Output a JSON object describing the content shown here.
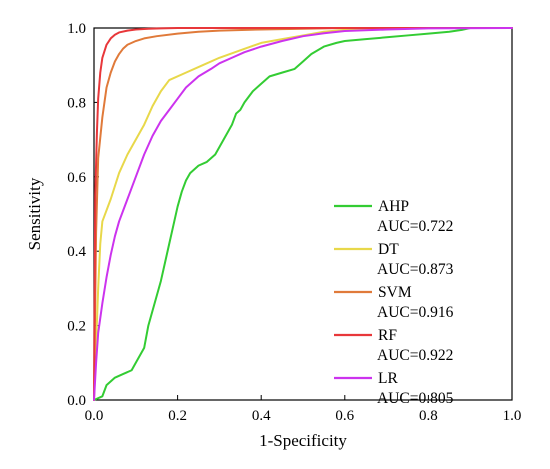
{
  "chart_data": {
    "type": "line",
    "xlabel": "1-Specificity",
    "ylabel": "Sensitivity",
    "xlim": [
      0,
      1
    ],
    "ylim": [
      0,
      1
    ],
    "xticks": [
      0.0,
      0.2,
      0.4,
      0.6,
      0.8,
      1.0
    ],
    "yticks": [
      0.0,
      0.2,
      0.4,
      0.6,
      0.8,
      1.0
    ],
    "xtick_labels": [
      "0.0",
      "0.2",
      "0.4",
      "0.6",
      "0.8",
      "1.0"
    ],
    "ytick_labels": [
      "0.0",
      "0.2",
      "0.4",
      "0.6",
      "0.8",
      "1.0"
    ],
    "grid": false,
    "legend_position": "bottom-right",
    "series": [
      {
        "name": "AHP",
        "auc_label": "AUC=0.722",
        "color": "#33cc33",
        "x": [
          0.0,
          0.02,
          0.03,
          0.05,
          0.07,
          0.09,
          0.1,
          0.12,
          0.13,
          0.14,
          0.15,
          0.16,
          0.17,
          0.18,
          0.19,
          0.2,
          0.21,
          0.22,
          0.23,
          0.24,
          0.25,
          0.27,
          0.29,
          0.31,
          0.33,
          0.34,
          0.35,
          0.36,
          0.38,
          0.4,
          0.42,
          0.45,
          0.48,
          0.5,
          0.52,
          0.55,
          0.58,
          0.6,
          0.65,
          0.7,
          0.75,
          0.8,
          0.85,
          0.88,
          0.9,
          0.95,
          1.0
        ],
        "y": [
          0.0,
          0.01,
          0.04,
          0.06,
          0.07,
          0.08,
          0.1,
          0.14,
          0.2,
          0.24,
          0.28,
          0.32,
          0.37,
          0.42,
          0.47,
          0.52,
          0.56,
          0.59,
          0.61,
          0.62,
          0.63,
          0.64,
          0.66,
          0.7,
          0.74,
          0.77,
          0.78,
          0.8,
          0.83,
          0.85,
          0.87,
          0.88,
          0.89,
          0.91,
          0.93,
          0.95,
          0.96,
          0.965,
          0.97,
          0.975,
          0.98,
          0.985,
          0.99,
          0.995,
          1.0,
          1.0,
          1.0
        ]
      },
      {
        "name": "DT",
        "auc_label": "AUC=0.873",
        "color": "#e8d84a",
        "x": [
          0.0,
          0.01,
          0.015,
          0.02,
          0.04,
          0.06,
          0.08,
          0.1,
          0.12,
          0.14,
          0.16,
          0.18,
          0.22,
          0.26,
          0.3,
          0.35,
          0.4,
          0.45,
          0.5,
          0.55,
          0.6,
          0.65,
          0.7,
          0.8,
          0.9,
          1.0
        ],
        "y": [
          0.0,
          0.3,
          0.42,
          0.48,
          0.54,
          0.61,
          0.66,
          0.7,
          0.74,
          0.79,
          0.83,
          0.86,
          0.88,
          0.9,
          0.92,
          0.94,
          0.96,
          0.97,
          0.98,
          0.99,
          0.995,
          0.998,
          1.0,
          1.0,
          1.0,
          1.0
        ]
      },
      {
        "name": "SVM",
        "auc_label": "AUC=0.916",
        "color": "#e07a3a",
        "x": [
          0.0,
          0.005,
          0.01,
          0.02,
          0.03,
          0.04,
          0.05,
          0.06,
          0.07,
          0.08,
          0.1,
          0.12,
          0.15,
          0.2,
          0.25,
          0.3,
          0.4,
          0.5,
          0.6,
          0.7,
          1.0
        ],
        "y": [
          0.0,
          0.45,
          0.65,
          0.76,
          0.84,
          0.88,
          0.91,
          0.93,
          0.945,
          0.955,
          0.965,
          0.972,
          0.978,
          0.985,
          0.99,
          0.993,
          0.996,
          0.998,
          1.0,
          1.0,
          1.0
        ]
      },
      {
        "name": "RF",
        "auc_label": "AUC=0.922",
        "color": "#e8373a",
        "x": [
          0.0,
          0.003,
          0.007,
          0.01,
          0.015,
          0.02,
          0.03,
          0.04,
          0.05,
          0.06,
          0.08,
          0.1,
          0.13,
          0.16,
          0.2,
          0.3,
          0.4,
          1.0
        ],
        "y": [
          0.0,
          0.55,
          0.72,
          0.81,
          0.88,
          0.92,
          0.955,
          0.972,
          0.982,
          0.988,
          0.993,
          0.996,
          0.998,
          0.999,
          1.0,
          1.0,
          1.0,
          1.0
        ]
      },
      {
        "name": "LR",
        "auc_label": "AUC=0.805",
        "color": "#cc33ee",
        "x": [
          0.0,
          0.005,
          0.01,
          0.02,
          0.03,
          0.04,
          0.05,
          0.06,
          0.07,
          0.08,
          0.1,
          0.12,
          0.14,
          0.16,
          0.18,
          0.2,
          0.22,
          0.25,
          0.28,
          0.3,
          0.33,
          0.36,
          0.4,
          0.45,
          0.5,
          0.55,
          0.6,
          0.7,
          0.8,
          1.0
        ],
        "y": [
          0.0,
          0.1,
          0.18,
          0.26,
          0.33,
          0.39,
          0.44,
          0.48,
          0.51,
          0.54,
          0.6,
          0.66,
          0.71,
          0.75,
          0.78,
          0.81,
          0.84,
          0.87,
          0.89,
          0.905,
          0.92,
          0.935,
          0.95,
          0.965,
          0.978,
          0.986,
          0.992,
          0.996,
          0.999,
          1.0
        ]
      }
    ]
  }
}
